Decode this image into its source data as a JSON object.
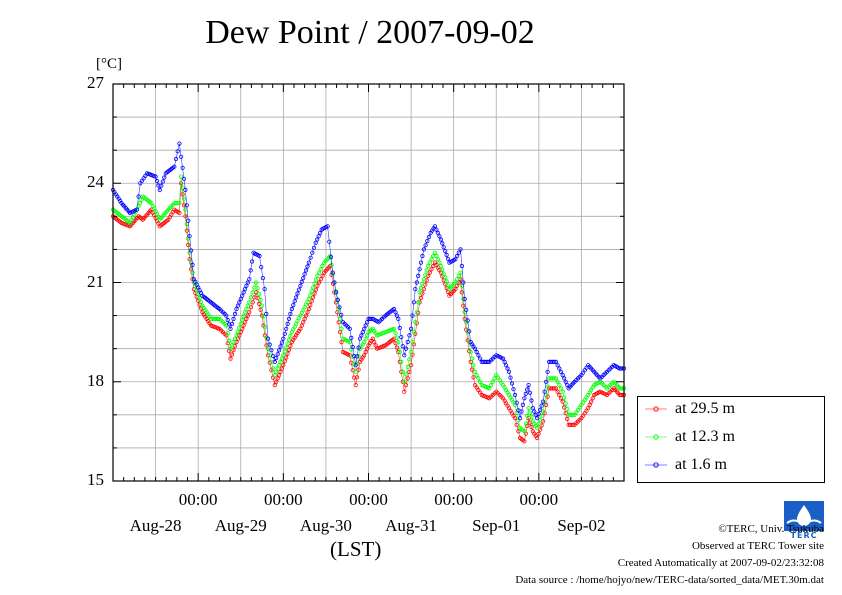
{
  "chart_data": {
    "type": "line",
    "title": "Dew Point / 2007-09-02",
    "ylabel": "[°C]",
    "xlabel": "(LST)",
    "ylim": [
      15,
      27
    ],
    "yticks": [
      "15",
      "18",
      "21",
      "24",
      "27"
    ],
    "x_range_days": [
      0,
      6
    ],
    "x_time_labels": [
      "00:00",
      "00:00",
      "00:00",
      "00:00",
      "00:00"
    ],
    "x_date_labels": [
      "Aug-28",
      "Aug-29",
      "Aug-30",
      "Aug-31",
      "Sep-01",
      "Sep-02"
    ],
    "grid": true,
    "legend_position": "right",
    "series": [
      {
        "name": "at 29.5 m",
        "color": "#ff0000",
        "points": [
          [
            0.0,
            23.0
          ],
          [
            0.1,
            22.8
          ],
          [
            0.2,
            22.7
          ],
          [
            0.3,
            23.0
          ],
          [
            0.35,
            22.9
          ],
          [
            0.45,
            23.2
          ],
          [
            0.55,
            22.7
          ],
          [
            0.65,
            22.9
          ],
          [
            0.72,
            23.2
          ],
          [
            0.78,
            23.1
          ],
          [
            0.8,
            24.0
          ],
          [
            0.85,
            23.0
          ],
          [
            0.9,
            21.7
          ],
          [
            0.95,
            20.8
          ],
          [
            1.05,
            20.1
          ],
          [
            1.15,
            19.7
          ],
          [
            1.25,
            19.6
          ],
          [
            1.33,
            19.4
          ],
          [
            1.38,
            18.7
          ],
          [
            1.45,
            19.2
          ],
          [
            1.55,
            19.8
          ],
          [
            1.6,
            20.1
          ],
          [
            1.68,
            20.7
          ],
          [
            1.75,
            20.0
          ],
          [
            1.82,
            18.8
          ],
          [
            1.9,
            17.9
          ],
          [
            2.0,
            18.5
          ],
          [
            2.1,
            19.2
          ],
          [
            2.2,
            19.6
          ],
          [
            2.3,
            20.2
          ],
          [
            2.4,
            20.9
          ],
          [
            2.48,
            21.3
          ],
          [
            2.55,
            21.5
          ],
          [
            2.6,
            20.7
          ],
          [
            2.65,
            19.8
          ],
          [
            2.7,
            18.9
          ],
          [
            2.78,
            18.8
          ],
          [
            2.85,
            17.9
          ],
          [
            2.9,
            18.6
          ],
          [
            2.95,
            18.8
          ],
          [
            3.0,
            19.1
          ],
          [
            3.05,
            19.3
          ],
          [
            3.1,
            19.0
          ],
          [
            3.2,
            19.1
          ],
          [
            3.3,
            19.3
          ],
          [
            3.35,
            18.9
          ],
          [
            3.42,
            17.7
          ],
          [
            3.5,
            18.5
          ],
          [
            3.6,
            20.4
          ],
          [
            3.7,
            21.2
          ],
          [
            3.78,
            21.6
          ],
          [
            3.85,
            21.3
          ],
          [
            3.95,
            20.6
          ],
          [
            4.02,
            20.8
          ],
          [
            4.08,
            21.1
          ],
          [
            4.13,
            19.9
          ],
          [
            4.2,
            18.6
          ],
          [
            4.25,
            17.9
          ],
          [
            4.33,
            17.6
          ],
          [
            4.42,
            17.5
          ],
          [
            4.5,
            17.7
          ],
          [
            4.58,
            17.5
          ],
          [
            4.65,
            17.2
          ],
          [
            4.72,
            16.9
          ],
          [
            4.78,
            16.3
          ],
          [
            4.83,
            16.2
          ],
          [
            4.88,
            16.9
          ],
          [
            4.93,
            16.5
          ],
          [
            4.98,
            16.3
          ],
          [
            5.05,
            16.8
          ],
          [
            5.12,
            17.8
          ],
          [
            5.2,
            17.8
          ],
          [
            5.28,
            17.4
          ],
          [
            5.35,
            16.7
          ],
          [
            5.42,
            16.7
          ],
          [
            5.5,
            16.9
          ],
          [
            5.58,
            17.2
          ],
          [
            5.65,
            17.6
          ],
          [
            5.72,
            17.7
          ],
          [
            5.8,
            17.6
          ],
          [
            5.88,
            17.8
          ],
          [
            5.95,
            17.6
          ],
          [
            6.0,
            17.6
          ]
        ]
      },
      {
        "name": "at 12.3 m",
        "color": "#00ff00",
        "points": [
          [
            0.0,
            23.2
          ],
          [
            0.1,
            23.0
          ],
          [
            0.2,
            22.8
          ],
          [
            0.3,
            23.3
          ],
          [
            0.35,
            23.6
          ],
          [
            0.45,
            23.4
          ],
          [
            0.55,
            22.9
          ],
          [
            0.65,
            23.2
          ],
          [
            0.72,
            23.4
          ],
          [
            0.78,
            23.4
          ],
          [
            0.8,
            24.2
          ],
          [
            0.85,
            23.2
          ],
          [
            0.9,
            21.9
          ],
          [
            0.95,
            21.0
          ],
          [
            1.05,
            20.3
          ],
          [
            1.15,
            19.9
          ],
          [
            1.25,
            19.9
          ],
          [
            1.33,
            19.7
          ],
          [
            1.38,
            19.0
          ],
          [
            1.45,
            19.4
          ],
          [
            1.55,
            20.1
          ],
          [
            1.6,
            20.4
          ],
          [
            1.68,
            21.0
          ],
          [
            1.75,
            20.3
          ],
          [
            1.82,
            19.0
          ],
          [
            1.9,
            18.2
          ],
          [
            2.0,
            18.8
          ],
          [
            2.1,
            19.5
          ],
          [
            2.2,
            20.0
          ],
          [
            2.3,
            20.5
          ],
          [
            2.4,
            21.2
          ],
          [
            2.48,
            21.6
          ],
          [
            2.55,
            21.8
          ],
          [
            2.6,
            21.0
          ],
          [
            2.65,
            20.2
          ],
          [
            2.7,
            19.3
          ],
          [
            2.78,
            19.2
          ],
          [
            2.85,
            18.3
          ],
          [
            2.9,
            19.0
          ],
          [
            2.95,
            19.2
          ],
          [
            3.0,
            19.5
          ],
          [
            3.05,
            19.6
          ],
          [
            3.1,
            19.4
          ],
          [
            3.2,
            19.5
          ],
          [
            3.3,
            19.6
          ],
          [
            3.35,
            19.2
          ],
          [
            3.42,
            18.0
          ],
          [
            3.5,
            18.9
          ],
          [
            3.6,
            20.7
          ],
          [
            3.7,
            21.5
          ],
          [
            3.78,
            21.9
          ],
          [
            3.85,
            21.5
          ],
          [
            3.95,
            20.8
          ],
          [
            4.02,
            21.0
          ],
          [
            4.08,
            21.3
          ],
          [
            4.13,
            20.1
          ],
          [
            4.2,
            18.9
          ],
          [
            4.25,
            18.3
          ],
          [
            4.33,
            17.9
          ],
          [
            4.42,
            17.8
          ],
          [
            4.5,
            18.2
          ],
          [
            4.58,
            17.9
          ],
          [
            4.65,
            17.6
          ],
          [
            4.72,
            17.3
          ],
          [
            4.78,
            16.6
          ],
          [
            4.83,
            16.5
          ],
          [
            4.88,
            17.2
          ],
          [
            4.93,
            16.8
          ],
          [
            4.98,
            16.6
          ],
          [
            5.05,
            17.1
          ],
          [
            5.12,
            18.1
          ],
          [
            5.2,
            18.1
          ],
          [
            5.28,
            17.7
          ],
          [
            5.35,
            17.0
          ],
          [
            5.42,
            17.0
          ],
          [
            5.5,
            17.3
          ],
          [
            5.58,
            17.6
          ],
          [
            5.65,
            17.9
          ],
          [
            5.72,
            18.0
          ],
          [
            5.8,
            17.8
          ],
          [
            5.88,
            18.0
          ],
          [
            5.95,
            17.8
          ],
          [
            6.0,
            17.8
          ]
        ]
      },
      {
        "name": "at 1.6 m",
        "color": "#0000ff",
        "points": [
          [
            0.0,
            23.8
          ],
          [
            0.1,
            23.4
          ],
          [
            0.2,
            23.1
          ],
          [
            0.28,
            23.2
          ],
          [
            0.32,
            24.0
          ],
          [
            0.4,
            24.3
          ],
          [
            0.5,
            24.2
          ],
          [
            0.55,
            23.8
          ],
          [
            0.62,
            24.3
          ],
          [
            0.72,
            24.5
          ],
          [
            0.78,
            25.2
          ],
          [
            0.8,
            24.8
          ],
          [
            0.85,
            23.8
          ],
          [
            0.9,
            22.4
          ],
          [
            0.95,
            21.1
          ],
          [
            1.05,
            20.6
          ],
          [
            1.15,
            20.4
          ],
          [
            1.25,
            20.2
          ],
          [
            1.33,
            20.0
          ],
          [
            1.38,
            19.6
          ],
          [
            1.45,
            20.2
          ],
          [
            1.55,
            20.8
          ],
          [
            1.6,
            21.1
          ],
          [
            1.65,
            21.9
          ],
          [
            1.72,
            21.8
          ],
          [
            1.78,
            20.8
          ],
          [
            1.82,
            19.3
          ],
          [
            1.9,
            18.6
          ],
          [
            2.0,
            19.3
          ],
          [
            2.1,
            20.2
          ],
          [
            2.2,
            20.9
          ],
          [
            2.3,
            21.6
          ],
          [
            2.38,
            22.2
          ],
          [
            2.45,
            22.6
          ],
          [
            2.52,
            22.7
          ],
          [
            2.58,
            21.3
          ],
          [
            2.62,
            20.7
          ],
          [
            2.7,
            19.8
          ],
          [
            2.78,
            19.6
          ],
          [
            2.85,
            18.5
          ],
          [
            2.9,
            19.3
          ],
          [
            2.95,
            19.6
          ],
          [
            3.0,
            19.9
          ],
          [
            3.05,
            19.9
          ],
          [
            3.12,
            19.8
          ],
          [
            3.2,
            20.0
          ],
          [
            3.3,
            20.2
          ],
          [
            3.35,
            19.9
          ],
          [
            3.42,
            18.8
          ],
          [
            3.5,
            19.6
          ],
          [
            3.55,
            20.8
          ],
          [
            3.65,
            22.0
          ],
          [
            3.73,
            22.5
          ],
          [
            3.78,
            22.7
          ],
          [
            3.85,
            22.3
          ],
          [
            3.95,
            21.6
          ],
          [
            4.02,
            21.7
          ],
          [
            4.08,
            22.0
          ],
          [
            4.13,
            20.5
          ],
          [
            4.2,
            19.2
          ],
          [
            4.25,
            19.0
          ],
          [
            4.33,
            18.6
          ],
          [
            4.42,
            18.6
          ],
          [
            4.5,
            18.8
          ],
          [
            4.58,
            18.7
          ],
          [
            4.65,
            18.3
          ],
          [
            4.72,
            17.6
          ],
          [
            4.78,
            16.9
          ],
          [
            4.83,
            17.5
          ],
          [
            4.88,
            17.9
          ],
          [
            4.93,
            17.2
          ],
          [
            4.98,
            16.9
          ],
          [
            5.05,
            17.4
          ],
          [
            5.12,
            18.6
          ],
          [
            5.2,
            18.6
          ],
          [
            5.28,
            18.2
          ],
          [
            5.35,
            17.8
          ],
          [
            5.42,
            18.0
          ],
          [
            5.5,
            18.2
          ],
          [
            5.58,
            18.5
          ],
          [
            5.65,
            18.3
          ],
          [
            5.72,
            18.1
          ],
          [
            5.8,
            18.3
          ],
          [
            5.88,
            18.5
          ],
          [
            5.95,
            18.4
          ],
          [
            6.0,
            18.4
          ]
        ]
      }
    ]
  },
  "legend": {
    "entries": [
      "at 29.5 m",
      "at 12.3 m",
      "at 1.6 m"
    ]
  },
  "credits": {
    "copyright": "©TERC, Univ. Tsukuba",
    "observed": "Observed at TERC Tower site",
    "created": "Created Automatically at 2007-09-02/23:32:08",
    "source": "Data source : /home/hojyo/new/TERC-data/sorted_data/MET.30m.dat"
  },
  "logo": {
    "text": "TERC",
    "color": "#1a5fc8"
  }
}
